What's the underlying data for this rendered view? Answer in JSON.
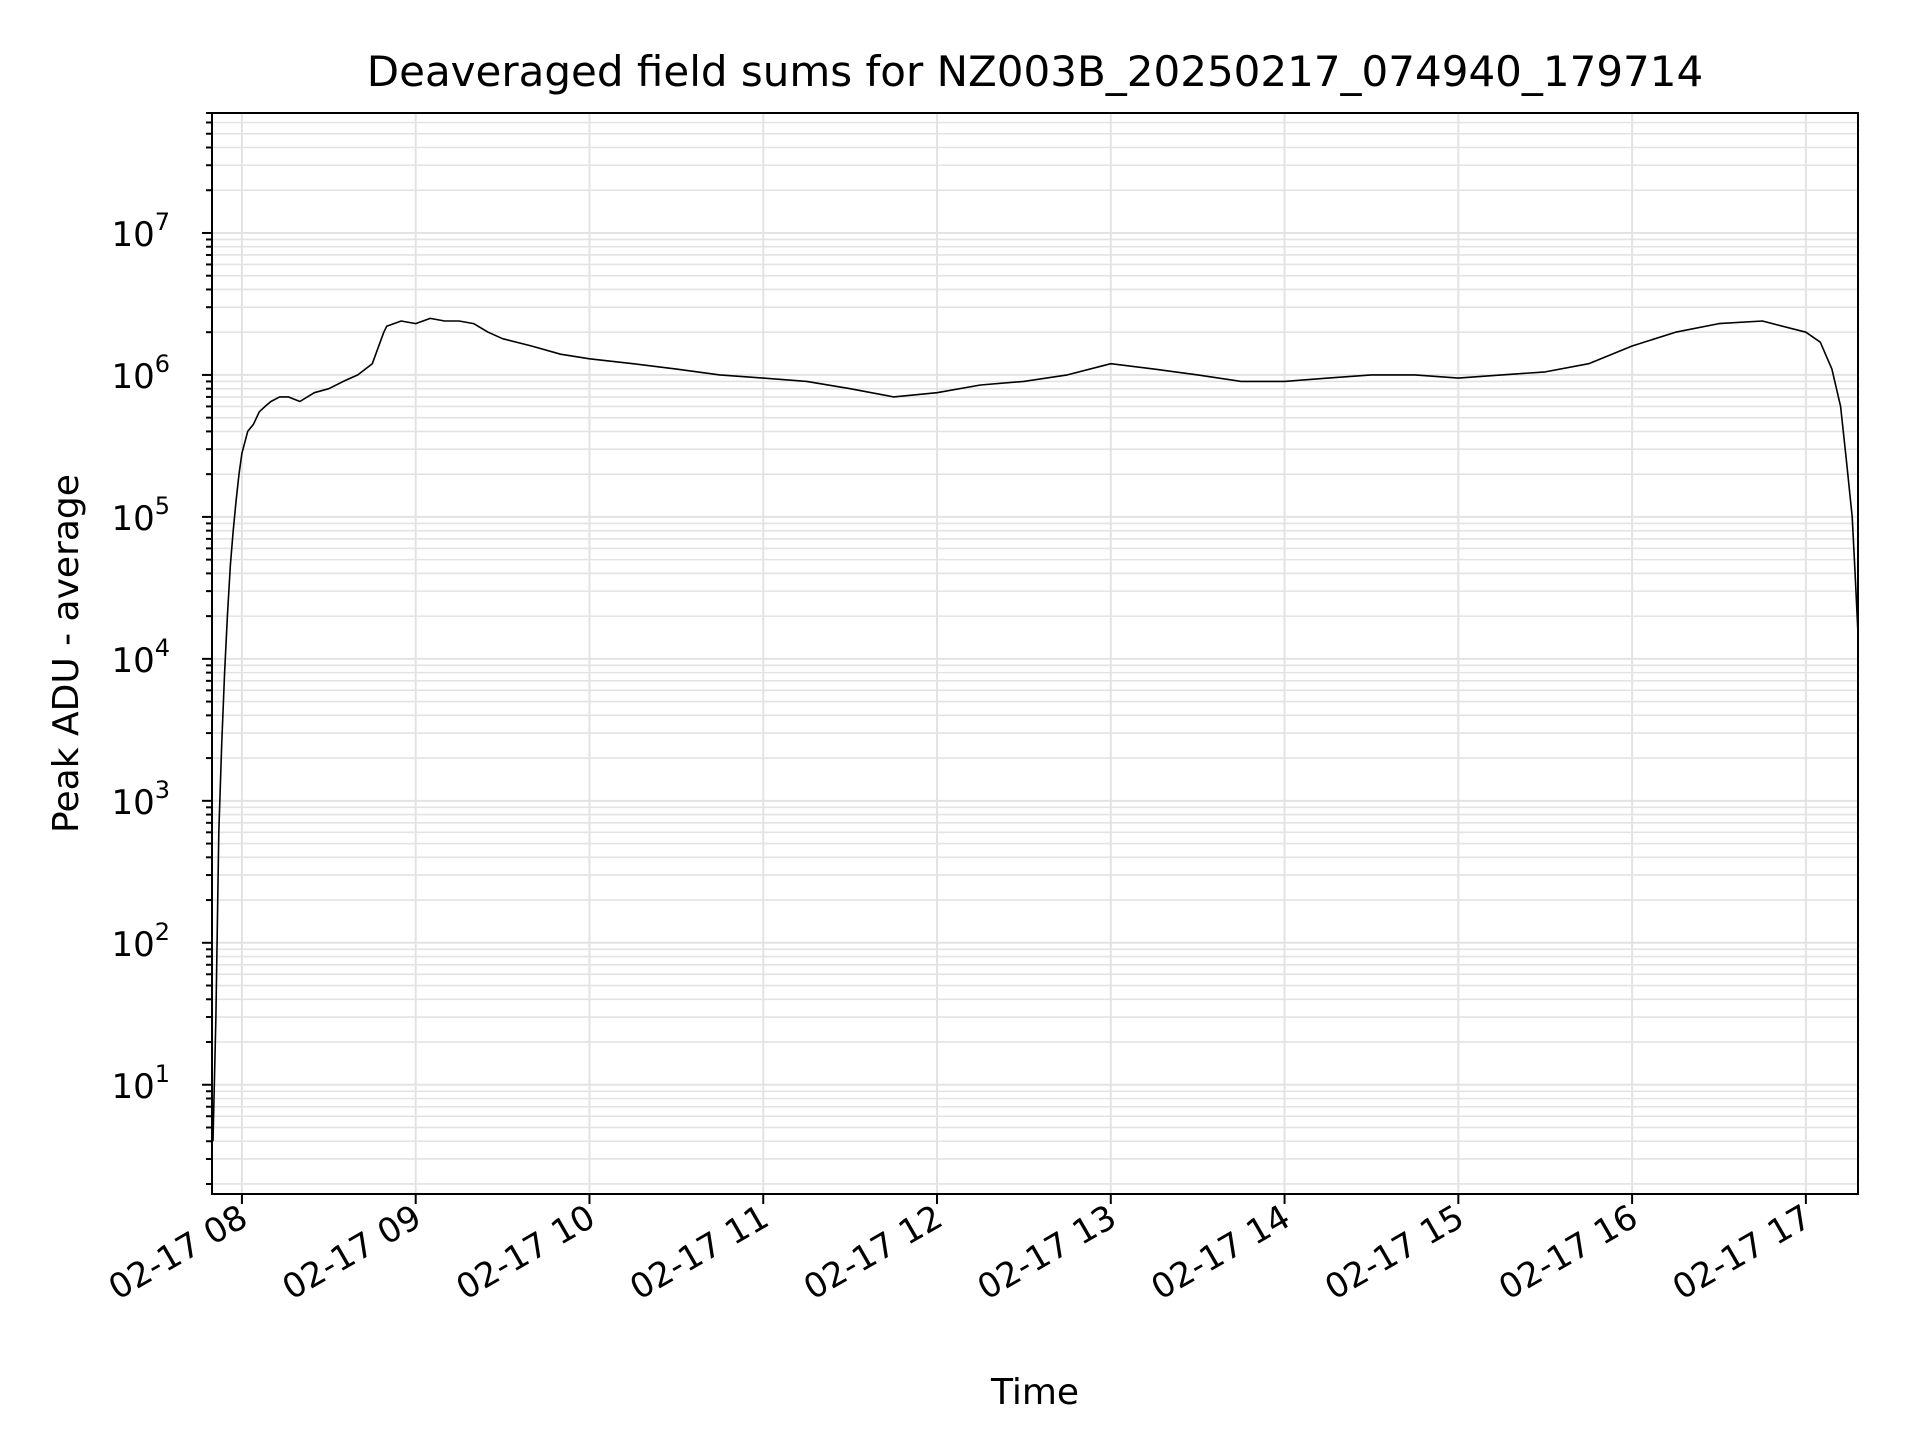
{
  "chart_data": {
    "type": "line",
    "title": "Deaveraged field sums for NZ003B_20250217_074940_179714",
    "xlabel": "Time",
    "ylabel": "Peak ADU - average",
    "yscale": "log",
    "ylim": [
      1.7,
      70000000
    ],
    "xlim": [
      "02-17 07:49:40",
      "02-17 17:18:00"
    ],
    "grid": true,
    "line_color": "#000000",
    "grid_color": "#e3e3e3",
    "x_ticks": [
      {
        "time": "02-17 08:00",
        "label": "02-17 08"
      },
      {
        "time": "02-17 09:00",
        "label": "02-17 09"
      },
      {
        "time": "02-17 10:00",
        "label": "02-17 10"
      },
      {
        "time": "02-17 11:00",
        "label": "02-17 11"
      },
      {
        "time": "02-17 12:00",
        "label": "02-17 12"
      },
      {
        "time": "02-17 13:00",
        "label": "02-17 13"
      },
      {
        "time": "02-17 14:00",
        "label": "02-17 14"
      },
      {
        "time": "02-17 15:00",
        "label": "02-17 15"
      },
      {
        "time": "02-17 16:00",
        "label": "02-17 16"
      },
      {
        "time": "02-17 17:00",
        "label": "02-17 17"
      }
    ],
    "y_ticks": [
      {
        "value": 10,
        "base": "10",
        "exp": "1"
      },
      {
        "value": 100,
        "base": "10",
        "exp": "2"
      },
      {
        "value": 1000,
        "base": "10",
        "exp": "3"
      },
      {
        "value": 10000,
        "base": "10",
        "exp": "4"
      },
      {
        "value": 100000,
        "base": "10",
        "exp": "5"
      },
      {
        "value": 1000000,
        "base": "10",
        "exp": "6"
      },
      {
        "value": 10000000,
        "base": "10",
        "exp": "7"
      }
    ],
    "series": [
      {
        "x": [
          "02-17 07:50",
          "02-17 07:51",
          "02-17 07:52",
          "02-17 07:53",
          "02-17 07:54",
          "02-17 07:55",
          "02-17 07:56",
          "02-17 07:57",
          "02-17 07:58",
          "02-17 07:59",
          "02-17 08:00",
          "02-17 08:02",
          "02-17 08:04",
          "02-17 08:06",
          "02-17 08:08",
          "02-17 08:10",
          "02-17 08:13",
          "02-17 08:16",
          "02-17 08:20",
          "02-17 08:25",
          "02-17 08:30",
          "02-17 08:35",
          "02-17 08:40",
          "02-17 08:45",
          "02-17 08:49",
          "02-17 08:50",
          "02-17 08:55",
          "02-17 09:00",
          "02-17 09:05",
          "02-17 09:10",
          "02-17 09:15",
          "02-17 09:20",
          "02-17 09:25",
          "02-17 09:30",
          "02-17 09:40",
          "02-17 09:50",
          "02-17 10:00",
          "02-17 10:15",
          "02-17 10:30",
          "02-17 10:45",
          "02-17 11:00",
          "02-17 11:15",
          "02-17 11:30",
          "02-17 11:45",
          "02-17 12:00",
          "02-17 12:15",
          "02-17 12:30",
          "02-17 12:45",
          "02-17 13:00",
          "02-17 13:15",
          "02-17 13:30",
          "02-17 13:45",
          "02-17 14:00",
          "02-17 14:15",
          "02-17 14:30",
          "02-17 14:45",
          "02-17 15:00",
          "02-17 15:15",
          "02-17 15:30",
          "02-17 15:45",
          "02-17 16:00",
          "02-17 16:15",
          "02-17 16:30",
          "02-17 16:45",
          "02-17 17:00",
          "02-17 17:05",
          "02-17 17:09",
          "02-17 17:12",
          "02-17 17:14",
          "02-17 17:16",
          "02-17 17:17",
          "02-17 17:18"
        ],
        "values": [
          4,
          30,
          600,
          2500,
          8000,
          20000,
          45000,
          80000,
          130000,
          200000,
          280000,
          400000,
          450000,
          550000,
          600000,
          650000,
          700000,
          700000,
          650000,
          750000,
          800000,
          900000,
          1000000,
          1200000,
          2000000,
          2200000,
          2400000,
          2300000,
          2500000,
          2400000,
          2400000,
          2300000,
          2000000,
          1800000,
          1600000,
          1400000,
          1300000,
          1200000,
          1100000,
          1000000,
          950000,
          900000,
          800000,
          700000,
          750000,
          850000,
          900000,
          1000000,
          1200000,
          1100000,
          1000000,
          900000,
          900000,
          950000,
          1000000,
          1000000,
          950000,
          1000000,
          1050000,
          1200000,
          1600000,
          2000000,
          2300000,
          2400000,
          2000000,
          1700000,
          1100000,
          600000,
          250000,
          100000,
          40000,
          15000
        ]
      }
    ]
  }
}
